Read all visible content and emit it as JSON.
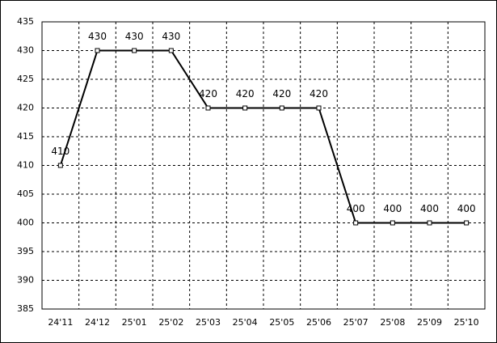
{
  "chart_data": {
    "type": "line",
    "categories": [
      "24'11",
      "24'12",
      "25'01",
      "25'02",
      "25'03",
      "25'04",
      "25'05",
      "25'06",
      "25'07",
      "25'08",
      "25'09",
      "25'10"
    ],
    "values": [
      410,
      430,
      430,
      430,
      420,
      420,
      420,
      420,
      400,
      400,
      400,
      400
    ],
    "color": "#000000",
    "ylim": [
      385,
      435
    ],
    "yticks": [
      385,
      390,
      395,
      400,
      405,
      410,
      415,
      420,
      425,
      430,
      435
    ],
    "grid": true
  }
}
